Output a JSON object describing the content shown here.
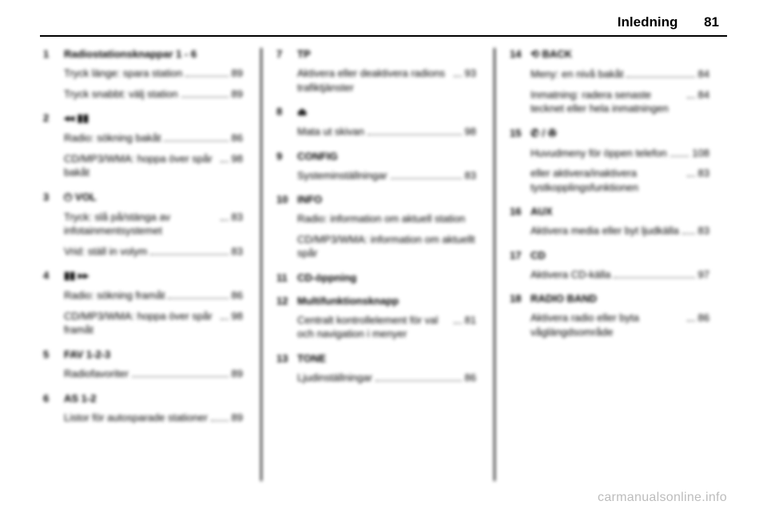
{
  "header": {
    "title": "Inledning",
    "page": "81"
  },
  "watermark": "carmanualsonline.info",
  "cols": [
    [
      {
        "num": "1",
        "heading": "Radiostationsknappar 1 - 6",
        "lines": [
          {
            "txt": "Tryck länge: spara station",
            "pg": "89"
          },
          {
            "txt": "Tryck snabbt: välj station",
            "pg": "89"
          }
        ]
      },
      {
        "num": "2",
        "heading": "◂◂ ▮▮",
        "lines": [
          {
            "txt": "Radio: sökning bakåt",
            "pg": "86"
          },
          {
            "txt": "CD/MP3/WMA: hoppa över spår bakåt",
            "pg": "98"
          }
        ]
      },
      {
        "num": "3",
        "heading": "⏻ VOL",
        "lines": [
          {
            "txt": "Tryck: slå på/stänga av infotainmentsystemet",
            "pg": "83"
          },
          {
            "txt": "Vrid: ställ in volym",
            "pg": "83"
          }
        ]
      },
      {
        "num": "4",
        "heading": "▮▮ ▸▸",
        "lines": [
          {
            "txt": "Radio: sökning framåt",
            "pg": "86"
          },
          {
            "txt": "CD/MP3/WMA: hoppa över spår framåt",
            "pg": "98"
          }
        ]
      },
      {
        "num": "5",
        "heading": "FAV 1-2-3",
        "lines": [
          {
            "txt": "Radiofavoriter",
            "pg": "89"
          }
        ]
      },
      {
        "num": "6",
        "heading": "AS 1-2",
        "lines": [
          {
            "txt": "Listor för autosparade stationer",
            "pg": "89"
          }
        ]
      }
    ],
    [
      {
        "num": "7",
        "heading": "TP",
        "lines": [
          {
            "txt": "Aktivera eller deaktivera radions trafiktjänster",
            "pg": "93"
          }
        ]
      },
      {
        "num": "8",
        "heading": "⏏",
        "lines": [
          {
            "txt": "Mata ut skivan",
            "pg": "98"
          }
        ]
      },
      {
        "num": "9",
        "heading": "CONFIG",
        "lines": [
          {
            "txt": "Systeminställningar",
            "pg": "83"
          }
        ]
      },
      {
        "num": "10",
        "heading": "INFO",
        "lines": [
          {
            "txt": "Radio: information om aktuell station",
            "pg": ""
          },
          {
            "txt": "CD/MP3/WMA: information om aktuellt spår",
            "pg": ""
          }
        ]
      },
      {
        "num": "11",
        "heading": "CD-öppning",
        "lines": []
      },
      {
        "num": "12",
        "heading": "Multifunktionsknapp",
        "lines": [
          {
            "txt": "Centralt kontrollelement för val och navigation i menyer",
            "pg": "81"
          }
        ]
      },
      {
        "num": "13",
        "heading": "TONE",
        "lines": [
          {
            "txt": "Ljudinställningar",
            "pg": "86"
          }
        ]
      }
    ],
    [
      {
        "num": "14",
        "heading": "⟲ BACK",
        "lines": [
          {
            "txt": "Meny: en nivå bakåt",
            "pg": "84"
          },
          {
            "txt": "Inmatning: radera senaste tecknet eller hela inmatningen",
            "pg": "84"
          }
        ]
      },
      {
        "num": "15",
        "heading": "✆ / ✇",
        "lines": [
          {
            "txt": "Huvudmeny för öppen telefon",
            "pg": "108"
          },
          {
            "txt": "eller aktivera/inaktivera tystkopplingsfunktionen",
            "pg": "83"
          }
        ]
      },
      {
        "num": "16",
        "heading": "AUX",
        "lines": [
          {
            "txt": "Aktivera media eller byt ljudkälla",
            "pg": "83"
          }
        ]
      },
      {
        "num": "17",
        "heading": "CD",
        "lines": [
          {
            "txt": "Aktivera CD-källa",
            "pg": "97"
          }
        ]
      },
      {
        "num": "18",
        "heading": "RADIO BAND",
        "lines": [
          {
            "txt": "Aktivera radio eller byta våglängdsområde",
            "pg": "86"
          }
        ]
      }
    ]
  ]
}
